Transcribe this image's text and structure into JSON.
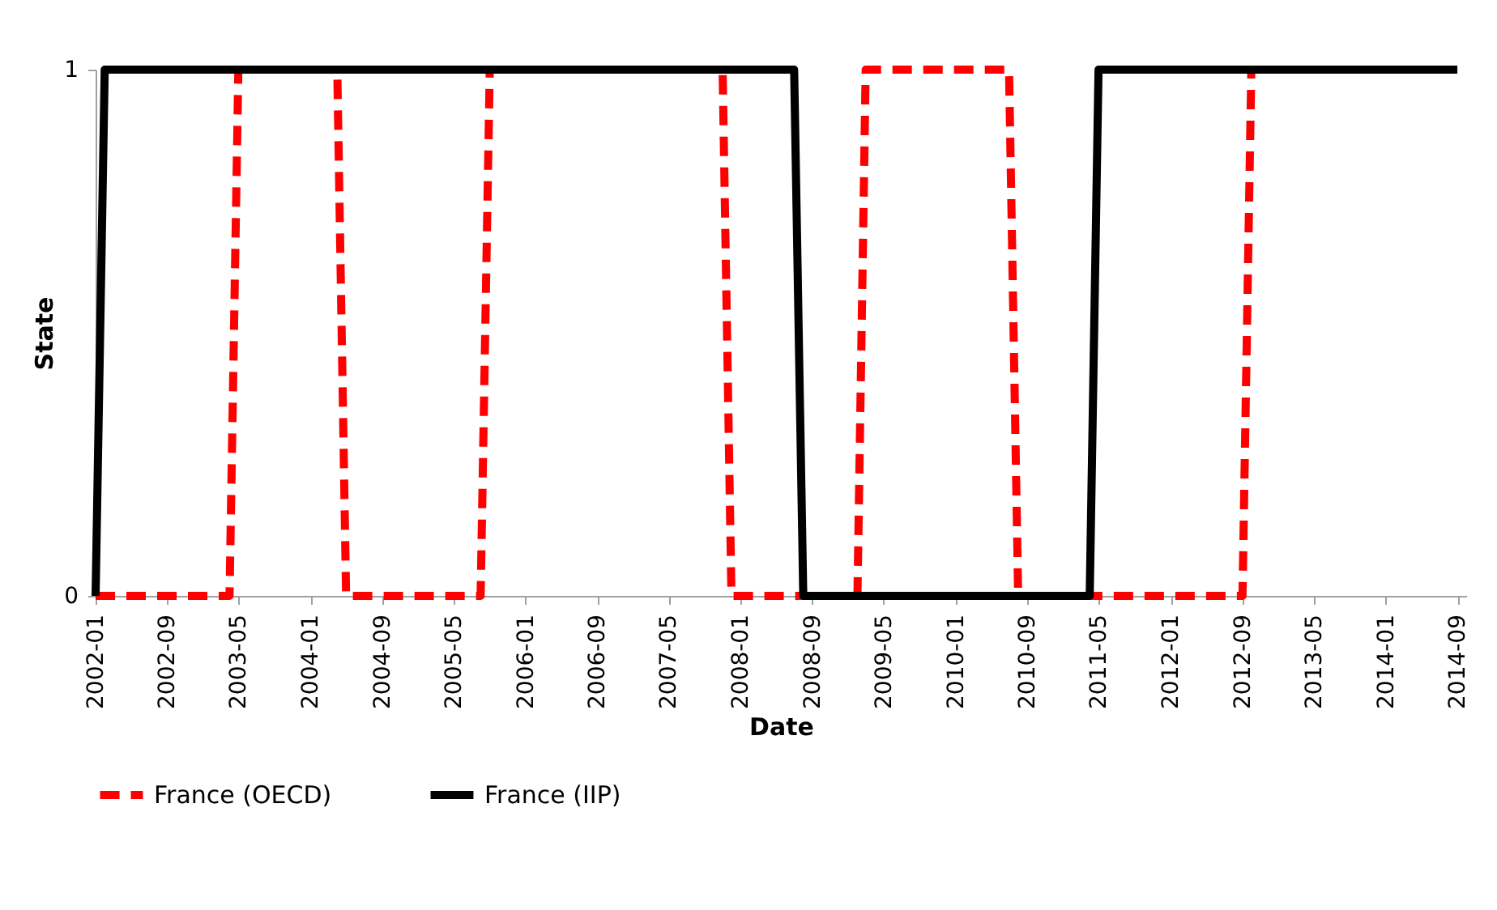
{
  "chart_data": {
    "type": "line",
    "xlabel": "Date",
    "ylabel": "State",
    "series": [
      {
        "name": "France (OECD)",
        "color": "#ff0000",
        "line_style": "dashed",
        "x": [
          "2002-01",
          "2003-04",
          "2003-05",
          "2004-04",
          "2004-05",
          "2005-08",
          "2005-09",
          "2007-11",
          "2007-12",
          "2009-02",
          "2009-03",
          "2010-07",
          "2010-08",
          "2012-09",
          "2012-10"
        ],
        "values": [
          0,
          0,
          1,
          1,
          0,
          0,
          1,
          1,
          0,
          0,
          1,
          1,
          0,
          0,
          1
        ]
      },
      {
        "name": "France (IIP)",
        "color": "#000000",
        "line_style": "solid",
        "x": [
          "2002-01",
          "2002-02",
          "2008-07",
          "2008-08",
          "2011-04",
          "2011-05",
          "2014-09"
        ],
        "values": [
          0,
          1,
          1,
          0,
          0,
          1,
          1
        ]
      }
    ],
    "xlim": [
      "2002-01",
      "2014-10"
    ],
    "xticks": [
      "2002-01",
      "2002-09",
      "2003-05",
      "2004-01",
      "2004-09",
      "2005-05",
      "2006-01",
      "2006-09",
      "2007-05",
      "2008-01",
      "2008-09",
      "2009-05",
      "2010-01",
      "2010-09",
      "2011-05",
      "2012-01",
      "2012-09",
      "2013-05",
      "2014-01",
      "2014-09"
    ],
    "ylim": [
      0,
      1
    ],
    "yticks": [
      0,
      1
    ],
    "grid": false,
    "legend": "bottom",
    "marker": "none"
  }
}
